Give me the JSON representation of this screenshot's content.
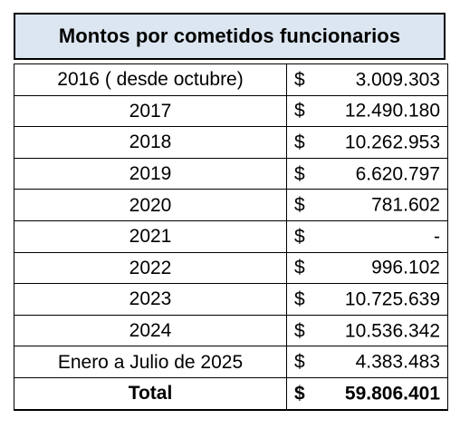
{
  "title": "Montos por cometidos funcionarios",
  "currency_symbol": "$",
  "rows": [
    {
      "label": "2016 ( desde octubre)",
      "amount": "3.009.303"
    },
    {
      "label": "2017",
      "amount": "12.490.180"
    },
    {
      "label": "2018",
      "amount": "10.262.953"
    },
    {
      "label": "2019",
      "amount": "6.620.797"
    },
    {
      "label": "2020",
      "amount": "781.602"
    },
    {
      "label": "2021",
      "amount": "-"
    },
    {
      "label": "2022",
      "amount": "996.102"
    },
    {
      "label": "2023",
      "amount": "10.725.639"
    },
    {
      "label": "2024",
      "amount": "10.536.342"
    },
    {
      "label": "Enero a Julio de 2025",
      "amount": "4.383.483"
    }
  ],
  "total": {
    "label": "Total",
    "amount": "59.806.401"
  },
  "colors": {
    "header_background": "#dce6f1",
    "border": "#000000"
  }
}
